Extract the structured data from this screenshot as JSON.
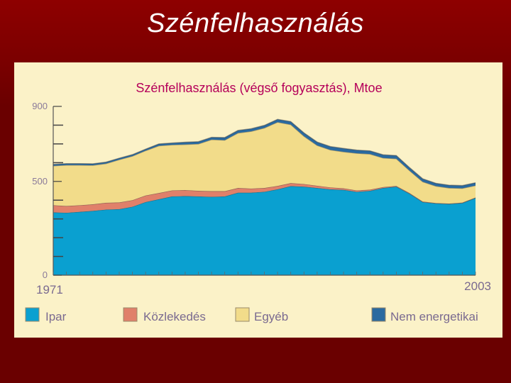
{
  "slide": {
    "title": "Szénfelhasználás"
  },
  "chart_data": {
    "type": "area",
    "stacked": true,
    "title": "Szénfelhasználás (végső fogyasztás), Mtoe",
    "y_ticks": [
      "900",
      "500",
      "0"
    ],
    "ylim": [
      0,
      900
    ],
    "xlim": [
      1971,
      2003
    ],
    "x_labels": [
      "1971",
      "2003"
    ],
    "x": [
      1971,
      1972,
      1973,
      1974,
      1975,
      1976,
      1977,
      1978,
      1979,
      1980,
      1981,
      1982,
      1983,
      1984,
      1985,
      1986,
      1987,
      1988,
      1989,
      1990,
      1991,
      1992,
      1993,
      1994,
      1995,
      1996,
      1997,
      1998,
      1999,
      2000,
      2001,
      2002,
      2003
    ],
    "series": [
      {
        "name": "Ipar",
        "color": "#0aa0d0",
        "values": [
          335,
          333,
          338,
          343,
          350,
          352,
          365,
          390,
          405,
          420,
          422,
          420,
          418,
          420,
          440,
          440,
          445,
          458,
          475,
          472,
          465,
          458,
          455,
          445,
          450,
          465,
          472,
          435,
          390,
          383,
          380,
          385,
          412
        ]
      },
      {
        "name": "Közlekedés",
        "color": "#e0806a",
        "values": [
          38,
          36,
          35,
          35,
          36,
          36,
          35,
          35,
          33,
          32,
          32,
          30,
          30,
          28,
          25,
          22,
          20,
          18,
          16,
          14,
          12,
          10,
          8,
          7,
          6,
          5,
          4,
          3,
          3,
          2,
          2,
          2,
          2
        ]
      },
      {
        "name": "Egyéb",
        "color": "#f2dc8a",
        "values": [
          210,
          218,
          214,
          208,
          209,
          228,
          235,
          239,
          252,
          243,
          243,
          250,
          275,
          272,
          293,
          305,
          320,
          340,
          312,
          255,
          215,
          200,
          195,
          198,
          190,
          155,
          145,
          120,
          105,
          90,
          83,
          76,
          64
        ]
      },
      {
        "name": "Nem energetikai",
        "color": "#2a6aa0",
        "values": [
          8,
          8,
          8,
          8,
          8,
          8,
          8,
          8,
          10,
          10,
          12,
          12,
          12,
          14,
          14,
          14,
          14,
          15,
          16,
          18,
          18,
          18,
          18,
          17,
          17,
          17,
          17,
          16,
          16,
          15,
          15,
          15,
          15
        ]
      }
    ]
  }
}
